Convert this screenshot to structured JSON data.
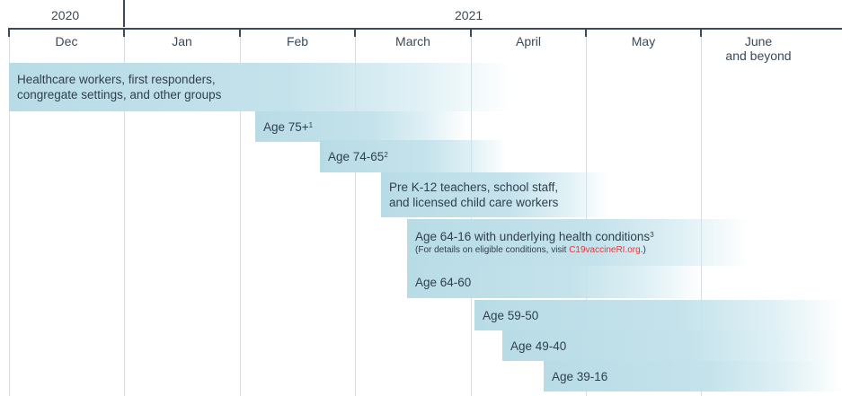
{
  "header": {
    "year_2020": "2020",
    "year_2021": "2021"
  },
  "months": [
    {
      "label": "Dec",
      "sub": ""
    },
    {
      "label": "Jan",
      "sub": ""
    },
    {
      "label": "Feb",
      "sub": ""
    },
    {
      "label": "March",
      "sub": ""
    },
    {
      "label": "April",
      "sub": ""
    },
    {
      "label": "May",
      "sub": ""
    },
    {
      "label": "June",
      "sub": "and beyond"
    }
  ],
  "groups": [
    {
      "line1": "Healthcare workers, first responders,",
      "line2": "congregate settings, and other groups"
    },
    {
      "label": "Age 75+",
      "sup": "1"
    },
    {
      "label": "Age 74-65",
      "sup": "2"
    },
    {
      "line1": "Pre K-12 teachers, school staff,",
      "line2": "and licensed child care workers"
    },
    {
      "label": "Age 64-16 with underlying health conditions",
      "sup": "3",
      "note_prefix": "(For details on eligible conditions, visit ",
      "note_link": "C19vaccineRI.org",
      "note_suffix": ".)"
    },
    {
      "label": "Age 64-60"
    },
    {
      "label": "Age 59-50"
    },
    {
      "label": "Age 49-40"
    },
    {
      "label": "Age 39-16"
    }
  ],
  "colors": {
    "bar": "#b8dce6",
    "axis": "#3a4a58",
    "gridline": "#d9dde2",
    "link": "#e0393e"
  }
}
